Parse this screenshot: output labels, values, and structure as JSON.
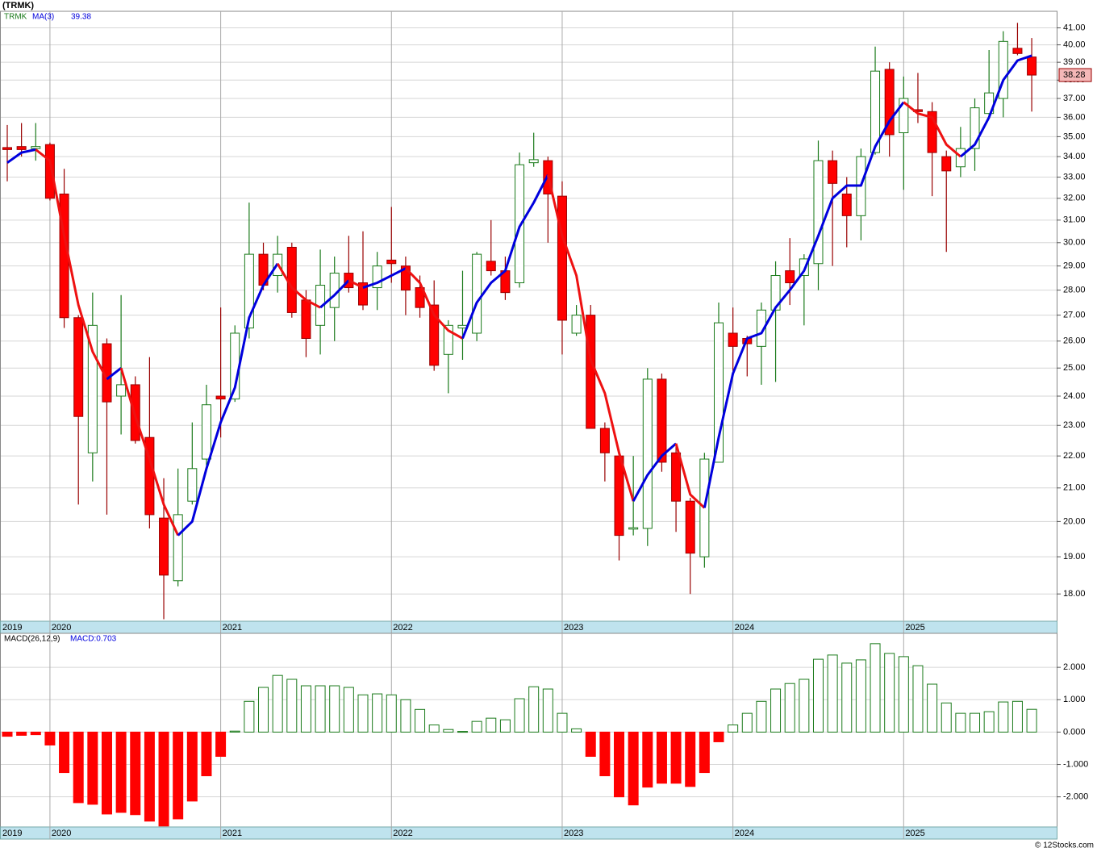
{
  "chart_data": [
    {
      "type": "candlestick",
      "title": "(TRMK)",
      "name": "TRMK",
      "log": true,
      "grid": true,
      "up_color": "#1a7a1a",
      "down_color": "#ff0000",
      "down_edge": "#990000",
      "last_color": "#f4b8b8",
      "categories": [
        "2019",
        null,
        null,
        "2020",
        null,
        null,
        null,
        null,
        null,
        null,
        null,
        null,
        null,
        null,
        null,
        "2021",
        null,
        null,
        null,
        null,
        null,
        null,
        null,
        null,
        null,
        null,
        null,
        "2022",
        null,
        null,
        null,
        null,
        null,
        null,
        null,
        null,
        null,
        null,
        null,
        "2023",
        null,
        null,
        null,
        null,
        null,
        null,
        null,
        null,
        null,
        null,
        null,
        "2024",
        null,
        null,
        null,
        null,
        null,
        null,
        null,
        null,
        null,
        null,
        null,
        "2025",
        null,
        null,
        null,
        null,
        null,
        null,
        null,
        null,
        null
      ],
      "open": [
        34.45,
        34.5,
        34.4,
        34.6,
        32.2,
        26.9,
        22.1,
        25.9,
        24.0,
        24.4,
        22.6,
        20.1,
        18.35,
        20.6,
        21.9,
        24.0,
        23.9,
        26.5,
        29.5,
        28.6,
        29.8,
        27.6,
        26.6,
        27.3,
        28.7,
        28.3,
        28.1,
        29.25,
        29.0,
        28.1,
        27.4,
        25.5,
        26.5,
        26.3,
        29.2,
        28.8,
        28.3,
        33.7,
        33.8,
        32.1,
        26.3,
        27.0,
        22.9,
        22.0,
        19.78,
        19.8,
        24.6,
        22.1,
        20.6,
        19.0,
        21.8,
        26.3,
        26.1,
        25.8,
        27.2,
        28.8,
        28.6,
        29.1,
        33.8,
        32.2,
        31.2,
        34.2,
        38.6,
        35.2,
        36.4,
        36.3,
        34.0,
        33.5,
        34.4,
        36.2,
        37.0,
        39.8,
        39.3
      ],
      "high": [
        35.6,
        35.7,
        35.7,
        34.7,
        33.4,
        27.0,
        27.9,
        26.1,
        27.8,
        24.7,
        25.4,
        21.3,
        21.6,
        23.1,
        24.4,
        27.3,
        26.6,
        31.8,
        30.0,
        30.3,
        30.0,
        28.0,
        29.7,
        29.4,
        30.3,
        30.5,
        29.6,
        31.6,
        29.4,
        28.6,
        28.4,
        26.8,
        28.8,
        29.6,
        31.0,
        29.4,
        34.2,
        35.2,
        34.0,
        32.8,
        27.4,
        27.4,
        23.1,
        22.2,
        22.0,
        25.0,
        24.8,
        22.4,
        20.7,
        22.1,
        27.5,
        27.3,
        26.2,
        27.5,
        29.2,
        30.2,
        29.5,
        34.8,
        34.3,
        33.0,
        34.4,
        39.9,
        39.0,
        38.2,
        38.4,
        36.8,
        34.3,
        35.5,
        37.0,
        39.7,
        40.8,
        41.3,
        40.4
      ],
      "low": [
        32.8,
        34.0,
        33.8,
        31.9,
        26.5,
        20.5,
        21.2,
        20.2,
        22.7,
        22.4,
        19.8,
        17.35,
        18.2,
        20.5,
        21.7,
        22.6,
        23.8,
        26.1,
        28.0,
        27.9,
        26.9,
        25.4,
        25.5,
        26.0,
        27.9,
        27.2,
        27.2,
        28.3,
        27.0,
        26.9,
        24.9,
        24.1,
        25.3,
        26.0,
        28.6,
        27.6,
        28.1,
        33.5,
        30.0,
        25.5,
        26.2,
        22.9,
        21.2,
        18.9,
        19.6,
        19.3,
        21.5,
        19.7,
        18.0,
        18.7,
        21.8,
        24.9,
        24.7,
        24.4,
        24.5,
        27.4,
        26.6,
        28.0,
        29.0,
        29.8,
        30.1,
        34.1,
        34.0,
        32.4,
        35.7,
        32.1,
        29.6,
        33.0,
        33.3,
        35.9,
        36.0,
        39.4,
        36.3
      ],
      "close": [
        34.35,
        34.35,
        34.5,
        32.0,
        26.9,
        23.3,
        26.6,
        23.8,
        24.4,
        22.5,
        20.2,
        18.5,
        20.2,
        21.6,
        23.7,
        23.9,
        26.3,
        29.5,
        28.2,
        29.5,
        27.1,
        26.1,
        28.2,
        28.7,
        28.1,
        27.4,
        29.0,
        29.1,
        28.0,
        27.3,
        25.1,
        26.6,
        26.6,
        29.5,
        28.8,
        27.9,
        33.6,
        33.85,
        32.2,
        26.8,
        27.0,
        22.9,
        22.1,
        19.6,
        19.82,
        24.6,
        21.8,
        20.6,
        19.1,
        21.9,
        26.7,
        25.8,
        25.9,
        27.2,
        28.6,
        28.3,
        29.3,
        33.8,
        32.7,
        31.2,
        34.0,
        38.5,
        35.1,
        37.0,
        36.3,
        34.2,
        33.3,
        34.4,
        36.5,
        37.3,
        40.2,
        39.5,
        38.28
      ],
      "ma": {
        "name": "MA(3)",
        "up_color": "#0000dd",
        "down_color": "#ee1111",
        "values": [
          33.7,
          34.2,
          34.35,
          33.8,
          30.3,
          27.4,
          25.6,
          24.6,
          25.0,
          23.3,
          21.9,
          20.5,
          19.6,
          20.0,
          21.6,
          23.1,
          24.3,
          26.9,
          28.2,
          29.1,
          28.1,
          27.6,
          27.3,
          27.8,
          28.4,
          28.1,
          28.3,
          28.6,
          28.9,
          28.3,
          27.0,
          26.4,
          26.1,
          27.5,
          28.3,
          28.8,
          30.7,
          31.8,
          33.1,
          30.3,
          28.6,
          25.3,
          24.1,
          22.1,
          20.6,
          21.4,
          22.0,
          22.4,
          20.8,
          20.4,
          22.6,
          24.8,
          26.1,
          26.3,
          27.3,
          28.0,
          28.8,
          30.3,
          32.0,
          32.6,
          32.6,
          34.5,
          35.8,
          36.8,
          36.2,
          36.0,
          34.6,
          34.0,
          34.6,
          36.0,
          38.0,
          39.1,
          39.38
        ]
      },
      "ylim": [
        17.3,
        42
      ],
      "yticks": [
        {
          "value": 18,
          "label": "18.00"
        },
        {
          "value": 19,
          "label": "19.00"
        },
        {
          "value": 20,
          "label": "20.00"
        },
        {
          "value": 21,
          "label": "21.00"
        },
        {
          "value": 22,
          "label": "22.00"
        },
        {
          "value": 23,
          "label": "23.00"
        },
        {
          "value": 24,
          "label": "24.00"
        },
        {
          "value": 25,
          "label": "25.00"
        },
        {
          "value": 26,
          "label": "26.00"
        },
        {
          "value": 27,
          "label": "27.00"
        },
        {
          "value": 28,
          "label": "28.00"
        },
        {
          "value": 29,
          "label": "29.00"
        },
        {
          "value": 30,
          "label": "30.00"
        },
        {
          "value": 31,
          "label": "31.00"
        },
        {
          "value": 32,
          "label": "32.00"
        },
        {
          "value": 33,
          "label": "33.00"
        },
        {
          "value": 34,
          "label": "34.00"
        },
        {
          "value": 35,
          "label": "35.00"
        },
        {
          "value": 36,
          "label": "36.00"
        },
        {
          "value": 37,
          "label": "37.00"
        },
        {
          "value": 38,
          "label": "38.00"
        },
        {
          "value": 39,
          "label": "39.00"
        },
        {
          "value": 40,
          "label": "40.00"
        },
        {
          "value": 41,
          "label": "41.00"
        }
      ]
    },
    {
      "type": "bar",
      "title": "MACD(26,12,9)",
      "macd_label": "MACD:0.703",
      "grid": true,
      "up_color": "#1a7a1a",
      "down_color": "#ff0000",
      "label_color": "#0000dd",
      "categories": [
        "2019",
        null,
        null,
        "2020",
        null,
        null,
        null,
        null,
        null,
        null,
        null,
        null,
        null,
        null,
        null,
        "2021",
        null,
        null,
        null,
        null,
        null,
        null,
        null,
        null,
        null,
        null,
        null,
        "2022",
        null,
        null,
        null,
        null,
        null,
        null,
        null,
        null,
        null,
        null,
        null,
        "2023",
        null,
        null,
        null,
        null,
        null,
        null,
        null,
        null,
        null,
        null,
        null,
        "2024",
        null,
        null,
        null,
        null,
        null,
        null,
        null,
        null,
        null,
        null,
        null,
        "2025",
        null,
        null,
        null,
        null,
        null,
        null,
        null,
        null,
        null
      ],
      "values": [
        -0.13,
        -0.1,
        -0.08,
        -0.4,
        -1.25,
        -2.18,
        -2.23,
        -2.53,
        -2.48,
        -2.55,
        -2.75,
        -2.9,
        -2.68,
        -2.13,
        -1.35,
        -0.75,
        0.03,
        0.95,
        1.38,
        1.75,
        1.63,
        1.43,
        1.43,
        1.43,
        1.38,
        1.15,
        1.18,
        1.15,
        1.0,
        0.7,
        0.22,
        0.08,
        0.02,
        0.33,
        0.43,
        0.38,
        1.03,
        1.4,
        1.33,
        0.58,
        0.1,
        -0.75,
        -1.35,
        -2.0,
        -2.25,
        -1.7,
        -1.58,
        -1.58,
        -1.68,
        -1.25,
        -0.3,
        0.22,
        0.58,
        0.95,
        1.33,
        1.5,
        1.63,
        2.25,
        2.38,
        2.13,
        2.23,
        2.73,
        2.43,
        2.33,
        2.05,
        1.48,
        0.9,
        0.58,
        0.58,
        0.63,
        0.93,
        0.95,
        0.703
      ],
      "ylim": [
        -2.93,
        3.05
      ],
      "yticks": [
        {
          "value": -2,
          "label": "-2.000"
        },
        {
          "value": -1,
          "label": "-1.000"
        },
        {
          "value": 0,
          "label": "0.000"
        },
        {
          "value": 1,
          "label": "1.000"
        },
        {
          "value": 2,
          "label": "2.000"
        }
      ]
    }
  ],
  "footer": "© 12Stocks.com"
}
